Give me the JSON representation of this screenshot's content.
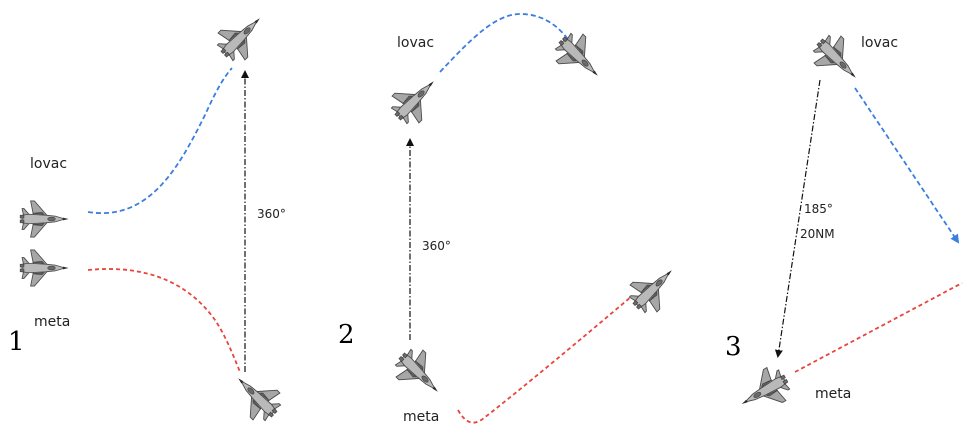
{
  "panels": [
    {
      "number": "1",
      "fighter_label": "lovac",
      "target_label": "meta",
      "angle_label": "360°"
    },
    {
      "number": "2",
      "fighter_label": "lovac",
      "target_label": "meta",
      "angle_label": "360°"
    },
    {
      "number": "3",
      "fighter_label": "lovac",
      "target_label": "meta",
      "angle_label": "185°",
      "distance_label": "20NM"
    }
  ],
  "colors": {
    "fighter_path": "#3b7de0",
    "target_path": "#e8443c",
    "heading_line": "#111111"
  },
  "icons": [
    "fighter-jet-icon"
  ]
}
